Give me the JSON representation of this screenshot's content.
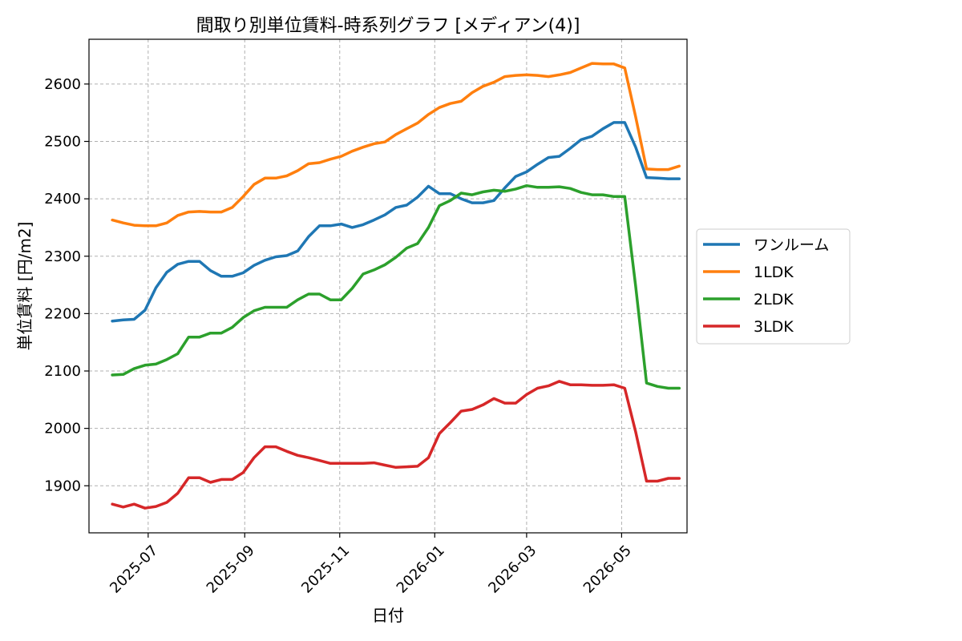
{
  "chart_data": {
    "type": "line",
    "title": "間取り別単位賃料-時系列グラフ [メディアン(4)]",
    "xlabel": "日付",
    "ylabel": "単位賃料 [円/m2]",
    "x_ticks": [
      {
        "date": "2025-07-01",
        "label": "2025-07"
      },
      {
        "date": "2025-09-01",
        "label": "2025-09"
      },
      {
        "date": "2025-11-01",
        "label": "2025-11"
      },
      {
        "date": "2026-01-01",
        "label": "2026-01"
      },
      {
        "date": "2026-03-01",
        "label": "2026-03"
      },
      {
        "date": "2026-05-01",
        "label": "2026-05"
      }
    ],
    "y_ticks": [
      1900,
      2000,
      2100,
      2200,
      2300,
      2400,
      2500,
      2600
    ],
    "xlim": [
      "2025-05-24",
      "2026-06-12"
    ],
    "ylim": [
      1818,
      2678
    ],
    "grid": true,
    "legend_position": "right-outside",
    "x": [
      "2025-06-08",
      "2025-06-15",
      "2025-06-22",
      "2025-06-29",
      "2025-07-06",
      "2025-07-13",
      "2025-07-20",
      "2025-07-27",
      "2025-08-03",
      "2025-08-10",
      "2025-08-17",
      "2025-08-24",
      "2025-08-31",
      "2025-09-07",
      "2025-09-14",
      "2025-09-21",
      "2025-09-28",
      "2025-10-05",
      "2025-10-12",
      "2025-10-19",
      "2025-10-26",
      "2025-11-02",
      "2025-11-09",
      "2025-11-16",
      "2025-11-23",
      "2025-11-30",
      "2025-12-07",
      "2025-12-14",
      "2025-12-21",
      "2025-12-28",
      "2026-01-04",
      "2026-01-11",
      "2026-01-18",
      "2026-01-25",
      "2026-02-01",
      "2026-02-08",
      "2026-02-15",
      "2026-02-22",
      "2026-03-01",
      "2026-03-08",
      "2026-03-15",
      "2026-03-22",
      "2026-03-29",
      "2026-04-05",
      "2026-04-12",
      "2026-04-19",
      "2026-04-26",
      "2026-05-03",
      "2026-05-10",
      "2026-05-17",
      "2026-05-24",
      "2026-05-31",
      "2026-06-07"
    ],
    "series": [
      {
        "name": "ワンルーム",
        "color": "#1f77b4",
        "values": [
          2187,
          2189,
          2190,
          2206,
          2245,
          2272,
          2286,
          2291,
          2291,
          2275,
          2265,
          2265,
          2271,
          2284,
          2293,
          2299,
          2301,
          2309,
          2334,
          2353,
          2353,
          2356,
          2350,
          2355,
          2363,
          2372,
          2385,
          2389,
          2403,
          2422,
          2409,
          2409,
          2400,
          2393,
          2393,
          2397,
          2419,
          2439,
          2447,
          2460,
          2472,
          2474,
          2488,
          2503,
          2509,
          2522,
          2533,
          2533,
          2490,
          2437,
          2436,
          2435,
          2435
        ]
      },
      {
        "name": "1LDK",
        "color": "#ff7f0e",
        "values": [
          2363,
          2358,
          2354,
          2353,
          2353,
          2358,
          2371,
          2377,
          2378,
          2377,
          2377,
          2385,
          2404,
          2425,
          2436,
          2436,
          2440,
          2449,
          2461,
          2463,
          2469,
          2474,
          2483,
          2490,
          2496,
          2499,
          2512,
          2522,
          2532,
          2547,
          2559,
          2566,
          2570,
          2585,
          2596,
          2603,
          2613,
          2615,
          2616,
          2615,
          2613,
          2616,
          2620,
          2628,
          2636,
          2635,
          2635,
          2628,
          2543,
          2452,
          2451,
          2451,
          2457
        ]
      },
      {
        "name": "2LDK",
        "color": "#2ca02c",
        "values": [
          2093,
          2094,
          2104,
          2110,
          2112,
          2120,
          2130,
          2159,
          2159,
          2166,
          2166,
          2176,
          2193,
          2205,
          2211,
          2211,
          2211,
          2224,
          2234,
          2234,
          2224,
          2224,
          2244,
          2269,
          2276,
          2285,
          2298,
          2314,
          2322,
          2350,
          2388,
          2397,
          2410,
          2407,
          2412,
          2415,
          2413,
          2417,
          2423,
          2420,
          2420,
          2421,
          2418,
          2411,
          2407,
          2407,
          2404,
          2404,
          2248,
          2079,
          2073,
          2070,
          2070
        ]
      },
      {
        "name": "3LDK",
        "color": "#d62728",
        "values": [
          1868,
          1863,
          1868,
          1861,
          1864,
          1871,
          1887,
          1914,
          1914,
          1906,
          1911,
          1911,
          1923,
          1949,
          1968,
          1968,
          1960,
          1953,
          1949,
          1944,
          1939,
          1939,
          1939,
          1939,
          1940,
          1936,
          1932,
          1933,
          1934,
          1949,
          1991,
          2010,
          2030,
          2033,
          2041,
          2052,
          2044,
          2044,
          2059,
          2070,
          2074,
          2082,
          2076,
          2076,
          2075,
          2075,
          2076,
          2070,
          1994,
          1908,
          1908,
          1913,
          1913
        ]
      }
    ]
  }
}
